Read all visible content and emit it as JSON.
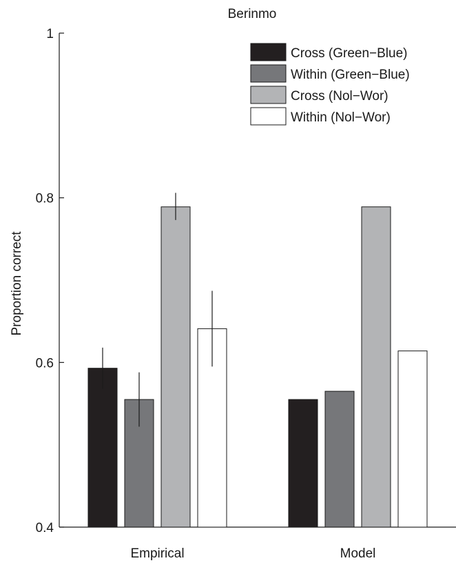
{
  "chart_data": {
    "type": "bar",
    "title": "Berinmo",
    "xlabel": "",
    "ylabel": "Proportion correct",
    "ylim": [
      0.4,
      1.0
    ],
    "yticks": [
      0.4,
      0.6,
      0.8,
      1.0
    ],
    "ytick_labels": [
      "0.4",
      "0.6",
      "0.8",
      "1"
    ],
    "categories": [
      "Empirical",
      "Model"
    ],
    "legend_position": "top-right",
    "grid": false,
    "series": [
      {
        "name": "Cross (Green−Blue)",
        "color": "#231f20",
        "values": [
          0.593,
          0.555
        ],
        "error_low": [
          0.568,
          null
        ],
        "error_high": [
          0.618,
          null
        ]
      },
      {
        "name": "Within (Green−Blue)",
        "color": "#76777a",
        "values": [
          0.555,
          0.565
        ],
        "error_low": [
          0.522,
          null
        ],
        "error_high": [
          0.588,
          null
        ]
      },
      {
        "name": "Cross (Nol−Wor)",
        "color": "#b3b4b6",
        "values": [
          0.789,
          0.789
        ],
        "error_low": [
          0.773,
          null
        ],
        "error_high": [
          0.806,
          null
        ]
      },
      {
        "name": "Within (Nol−Wor)",
        "color": "#ffffff",
        "values": [
          0.641,
          0.614
        ],
        "error_low": [
          0.595,
          null
        ],
        "error_high": [
          0.687,
          null
        ]
      }
    ]
  }
}
